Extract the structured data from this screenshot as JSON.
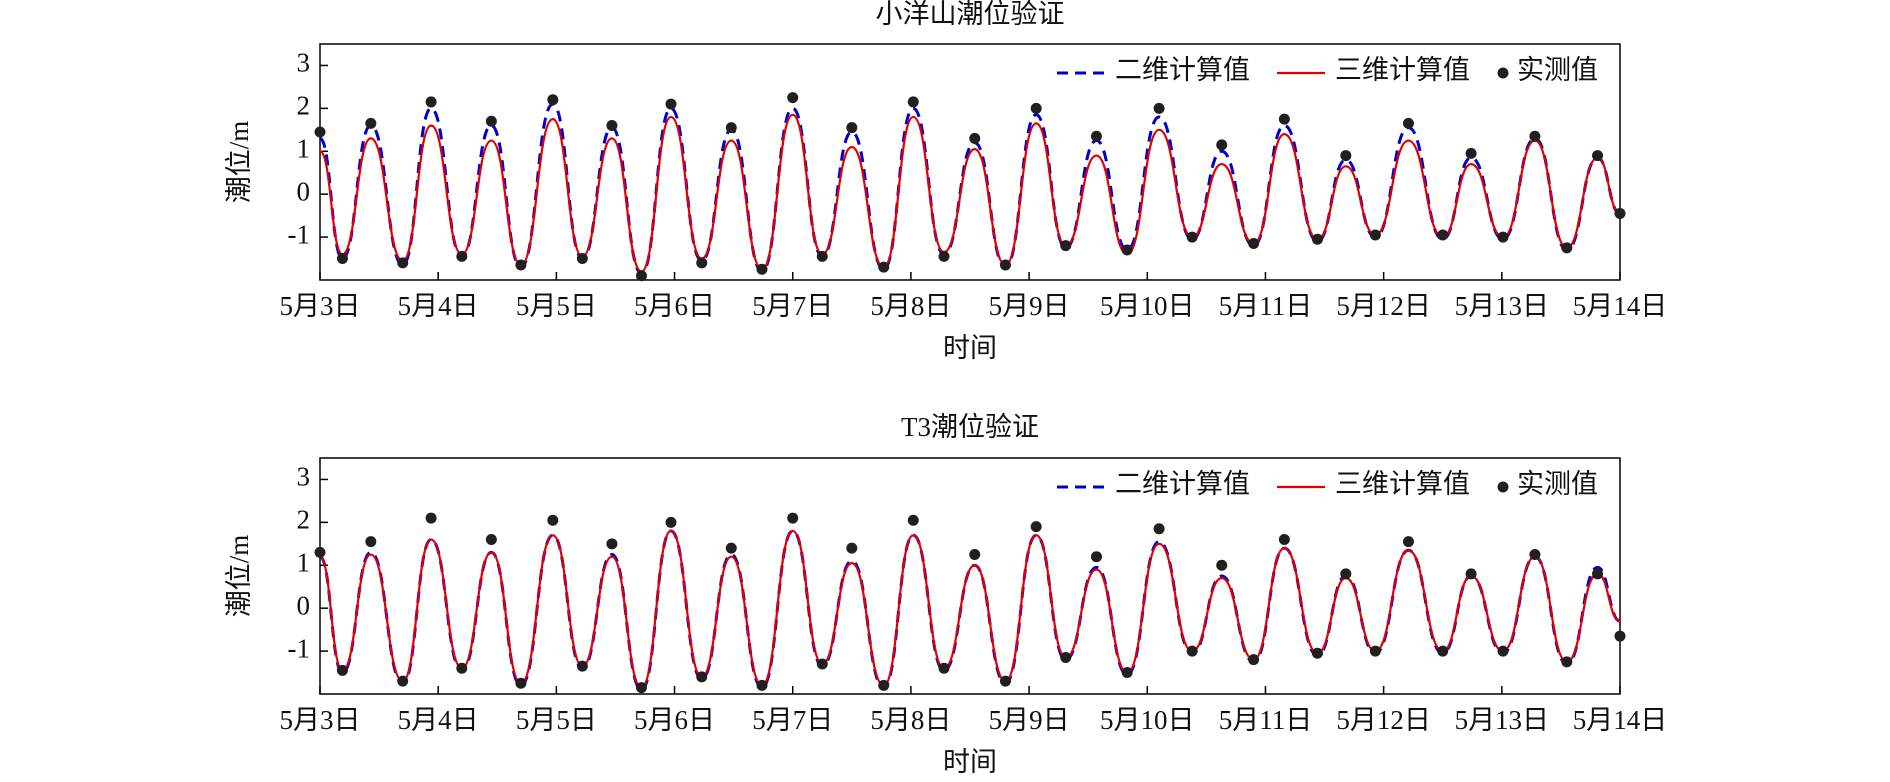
{
  "chart_data": [
    {
      "type": "line",
      "title": "小洋山潮位验证",
      "xlabel": "时间",
      "ylabel": "潮位/m",
      "x": [
        3.0,
        3.19,
        3.43,
        3.7,
        3.94,
        4.2,
        4.45,
        4.7,
        4.97,
        5.22,
        5.47,
        5.72,
        5.97,
        6.23,
        6.48,
        6.74,
        7.0,
        7.25,
        7.5,
        7.77,
        8.02,
        8.28,
        8.54,
        8.8,
        9.06,
        9.31,
        9.57,
        9.83,
        10.1,
        10.38,
        10.63,
        10.9,
        11.16,
        11.44,
        11.68,
        11.93,
        12.21,
        12.5,
        12.74,
        13.01,
        13.28,
        13.55,
        13.81,
        14.0
      ],
      "xlim": [
        3,
        14
      ],
      "xticks": [
        {
          "value": 3,
          "label": "5月3日"
        },
        {
          "value": 4,
          "label": "5月4日"
        },
        {
          "value": 5,
          "label": "5月5日"
        },
        {
          "value": 6,
          "label": "5月6日"
        },
        {
          "value": 7,
          "label": "5月7日"
        },
        {
          "value": 8,
          "label": "5月8日"
        },
        {
          "value": 9,
          "label": "5月9日"
        },
        {
          "value": 10,
          "label": "5月10日"
        },
        {
          "value": 11,
          "label": "5月11日"
        },
        {
          "value": 12,
          "label": "5月12日"
        },
        {
          "value": 13,
          "label": "5月13日"
        },
        {
          "value": 14,
          "label": "5月14日"
        }
      ],
      "ylim": [
        -2,
        3.5
      ],
      "yticks": [
        -1,
        0,
        1,
        2,
        3
      ],
      "legend": "upper right",
      "series": [
        {
          "name": "二维计算值",
          "color": "#0000cc",
          "style": "dashed",
          "values": [
            1.3,
            -1.5,
            1.6,
            -1.65,
            2.0,
            -1.45,
            1.6,
            -1.7,
            2.1,
            -1.5,
            1.55,
            -1.85,
            2.0,
            -1.55,
            1.5,
            -1.8,
            2.0,
            -1.45,
            1.45,
            -1.75,
            2.0,
            -1.4,
            1.2,
            -1.7,
            1.85,
            -1.25,
            1.25,
            -1.3,
            1.8,
            -1.05,
            1.0,
            -1.2,
            1.6,
            -1.1,
            0.8,
            -1.0,
            1.55,
            -1.05,
            0.85,
            -1.05,
            1.3,
            -1.3,
            0.85,
            -0.45
          ]
        },
        {
          "name": "三维计算值",
          "color": "#e00000",
          "style": "solid",
          "values": [
            1.0,
            -1.4,
            1.3,
            -1.55,
            1.6,
            -1.4,
            1.25,
            -1.65,
            1.75,
            -1.45,
            1.3,
            -1.8,
            1.8,
            -1.5,
            1.25,
            -1.75,
            1.85,
            -1.4,
            1.1,
            -1.7,
            1.8,
            -1.35,
            1.05,
            -1.65,
            1.65,
            -1.2,
            0.9,
            -1.4,
            1.5,
            -1.0,
            0.7,
            -1.15,
            1.4,
            -1.05,
            0.65,
            -0.95,
            1.25,
            -1.0,
            0.7,
            -1.0,
            1.25,
            -1.25,
            0.85,
            -0.45
          ]
        },
        {
          "name": "实测值",
          "color": "#231f20",
          "style": "dot",
          "values": [
            1.45,
            -1.5,
            1.65,
            -1.6,
            2.15,
            -1.45,
            1.7,
            -1.65,
            2.2,
            -1.5,
            1.6,
            -1.9,
            2.1,
            -1.6,
            1.55,
            -1.75,
            2.25,
            -1.45,
            1.55,
            -1.7,
            2.15,
            -1.45,
            1.3,
            -1.65,
            2.0,
            -1.2,
            1.35,
            -1.3,
            2.0,
            -1.0,
            1.15,
            -1.15,
            1.75,
            -1.05,
            0.9,
            -0.95,
            1.65,
            -0.95,
            0.95,
            -1.0,
            1.35,
            -1.25,
            0.9,
            -0.45
          ]
        }
      ]
    },
    {
      "type": "line",
      "title": "T3潮位验证",
      "xlabel": "时间",
      "ylabel": "潮位/m",
      "x": [
        3.0,
        3.19,
        3.43,
        3.7,
        3.94,
        4.2,
        4.45,
        4.7,
        4.97,
        5.22,
        5.47,
        5.72,
        5.97,
        6.23,
        6.48,
        6.74,
        7.0,
        7.25,
        7.5,
        7.77,
        8.02,
        8.28,
        8.54,
        8.8,
        9.06,
        9.31,
        9.57,
        9.83,
        10.1,
        10.38,
        10.63,
        10.9,
        11.16,
        11.44,
        11.68,
        11.93,
        12.21,
        12.5,
        12.74,
        13.01,
        13.28,
        13.55,
        13.81,
        14.0
      ],
      "xlim": [
        3,
        14
      ],
      "xticks": [
        {
          "value": 3,
          "label": "5月3日"
        },
        {
          "value": 4,
          "label": "5月4日"
        },
        {
          "value": 5,
          "label": "5月5日"
        },
        {
          "value": 6,
          "label": "5月6日"
        },
        {
          "value": 7,
          "label": "5月7日"
        },
        {
          "value": 8,
          "label": "5月8日"
        },
        {
          "value": 9,
          "label": "5月9日"
        },
        {
          "value": 10,
          "label": "5月10日"
        },
        {
          "value": 11,
          "label": "5月11日"
        },
        {
          "value": 12,
          "label": "5月12日"
        },
        {
          "value": 13,
          "label": "5月13日"
        },
        {
          "value": 14,
          "label": "5月14日"
        }
      ],
      "ylim": [
        -2,
        3.5
      ],
      "yticks": [
        -1,
        0,
        1,
        2,
        3
      ],
      "legend": "upper right",
      "series": [
        {
          "name": "二维计算值",
          "color": "#0000cc",
          "style": "dashed",
          "values": [
            1.2,
            -1.5,
            1.3,
            -1.75,
            1.6,
            -1.45,
            1.3,
            -1.8,
            1.7,
            -1.4,
            1.25,
            -1.9,
            1.8,
            -1.65,
            1.25,
            -1.85,
            1.8,
            -1.35,
            1.1,
            -1.85,
            1.7,
            -1.45,
            1.0,
            -1.75,
            1.7,
            -1.2,
            0.95,
            -1.55,
            1.55,
            -1.05,
            0.75,
            -1.25,
            1.4,
            -1.1,
            0.75,
            -1.05,
            1.35,
            -1.05,
            0.75,
            -1.05,
            1.2,
            -1.3,
            0.95,
            -0.3
          ]
        },
        {
          "name": "三维计算值",
          "color": "#e00000",
          "style": "solid",
          "values": [
            1.2,
            -1.45,
            1.25,
            -1.7,
            1.6,
            -1.4,
            1.3,
            -1.75,
            1.7,
            -1.35,
            1.2,
            -1.85,
            1.8,
            -1.6,
            1.2,
            -1.8,
            1.8,
            -1.3,
            1.05,
            -1.8,
            1.7,
            -1.4,
            1.0,
            -1.7,
            1.7,
            -1.15,
            0.9,
            -1.5,
            1.5,
            -1.0,
            0.7,
            -1.2,
            1.4,
            -1.05,
            0.7,
            -1.0,
            1.35,
            -1.0,
            0.75,
            -1.0,
            1.2,
            -1.25,
            0.8,
            -0.3
          ]
        },
        {
          "name": "实测值",
          "color": "#231f20",
          "style": "dot",
          "values": [
            1.3,
            -1.45,
            1.55,
            -1.7,
            2.1,
            -1.4,
            1.6,
            -1.75,
            2.05,
            -1.35,
            1.5,
            -1.85,
            2.0,
            -1.6,
            1.4,
            -1.8,
            2.1,
            -1.3,
            1.4,
            -1.8,
            2.05,
            -1.4,
            1.25,
            -1.7,
            1.9,
            -1.15,
            1.2,
            -1.5,
            1.85,
            -1.0,
            1.0,
            -1.2,
            1.6,
            -1.05,
            0.8,
            -1.0,
            1.55,
            -1.0,
            0.8,
            -1.0,
            1.25,
            -1.25,
            0.8,
            -0.65
          ]
        }
      ]
    }
  ]
}
